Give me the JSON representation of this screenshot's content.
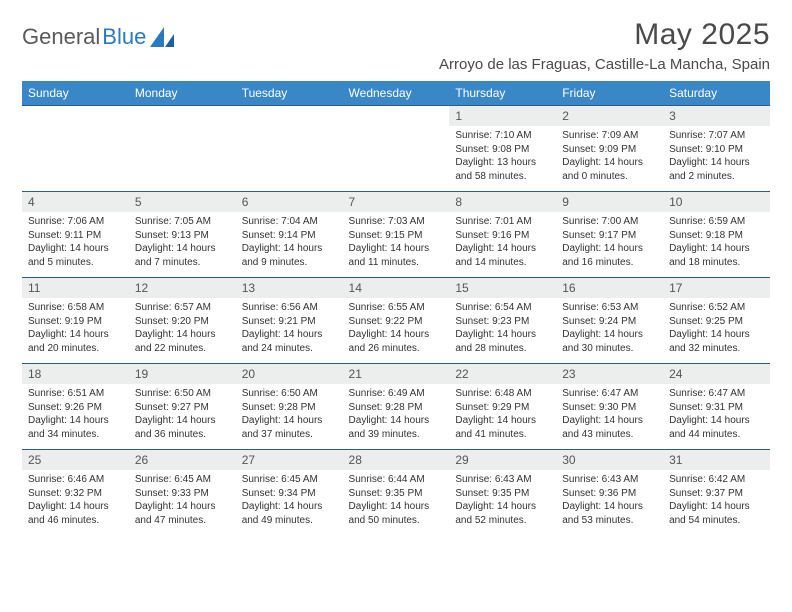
{
  "brand": {
    "text1": "General",
    "text2": "Blue"
  },
  "title": "May 2025",
  "location": "Arroyo de las Fraguas, Castille-La Mancha, Spain",
  "colors": {
    "header_bg": "#3a87c8",
    "header_text": "#ffffff",
    "row_border": "#2f5b84",
    "daynum_bg": "#eceded",
    "text": "#333333",
    "brand_gray": "#5a5a5a",
    "brand_blue": "#2a7ac0"
  },
  "typography": {
    "title_fontsize": 30,
    "location_fontsize": 15,
    "header_fontsize": 12,
    "daynum_fontsize": 12,
    "info_fontsize": 10
  },
  "day_headers": [
    "Sunday",
    "Monday",
    "Tuesday",
    "Wednesday",
    "Thursday",
    "Friday",
    "Saturday"
  ],
  "weeks": [
    [
      {
        "empty": true
      },
      {
        "empty": true
      },
      {
        "empty": true
      },
      {
        "empty": true
      },
      {
        "num": "1",
        "sunrise": "Sunrise: 7:10 AM",
        "sunset": "Sunset: 9:08 PM",
        "daylight1": "Daylight: 13 hours",
        "daylight2": "and 58 minutes."
      },
      {
        "num": "2",
        "sunrise": "Sunrise: 7:09 AM",
        "sunset": "Sunset: 9:09 PM",
        "daylight1": "Daylight: 14 hours",
        "daylight2": "and 0 minutes."
      },
      {
        "num": "3",
        "sunrise": "Sunrise: 7:07 AM",
        "sunset": "Sunset: 9:10 PM",
        "daylight1": "Daylight: 14 hours",
        "daylight2": "and 2 minutes."
      }
    ],
    [
      {
        "num": "4",
        "sunrise": "Sunrise: 7:06 AM",
        "sunset": "Sunset: 9:11 PM",
        "daylight1": "Daylight: 14 hours",
        "daylight2": "and 5 minutes."
      },
      {
        "num": "5",
        "sunrise": "Sunrise: 7:05 AM",
        "sunset": "Sunset: 9:13 PM",
        "daylight1": "Daylight: 14 hours",
        "daylight2": "and 7 minutes."
      },
      {
        "num": "6",
        "sunrise": "Sunrise: 7:04 AM",
        "sunset": "Sunset: 9:14 PM",
        "daylight1": "Daylight: 14 hours",
        "daylight2": "and 9 minutes."
      },
      {
        "num": "7",
        "sunrise": "Sunrise: 7:03 AM",
        "sunset": "Sunset: 9:15 PM",
        "daylight1": "Daylight: 14 hours",
        "daylight2": "and 11 minutes."
      },
      {
        "num": "8",
        "sunrise": "Sunrise: 7:01 AM",
        "sunset": "Sunset: 9:16 PM",
        "daylight1": "Daylight: 14 hours",
        "daylight2": "and 14 minutes."
      },
      {
        "num": "9",
        "sunrise": "Sunrise: 7:00 AM",
        "sunset": "Sunset: 9:17 PM",
        "daylight1": "Daylight: 14 hours",
        "daylight2": "and 16 minutes."
      },
      {
        "num": "10",
        "sunrise": "Sunrise: 6:59 AM",
        "sunset": "Sunset: 9:18 PM",
        "daylight1": "Daylight: 14 hours",
        "daylight2": "and 18 minutes."
      }
    ],
    [
      {
        "num": "11",
        "sunrise": "Sunrise: 6:58 AM",
        "sunset": "Sunset: 9:19 PM",
        "daylight1": "Daylight: 14 hours",
        "daylight2": "and 20 minutes."
      },
      {
        "num": "12",
        "sunrise": "Sunrise: 6:57 AM",
        "sunset": "Sunset: 9:20 PM",
        "daylight1": "Daylight: 14 hours",
        "daylight2": "and 22 minutes."
      },
      {
        "num": "13",
        "sunrise": "Sunrise: 6:56 AM",
        "sunset": "Sunset: 9:21 PM",
        "daylight1": "Daylight: 14 hours",
        "daylight2": "and 24 minutes."
      },
      {
        "num": "14",
        "sunrise": "Sunrise: 6:55 AM",
        "sunset": "Sunset: 9:22 PM",
        "daylight1": "Daylight: 14 hours",
        "daylight2": "and 26 minutes."
      },
      {
        "num": "15",
        "sunrise": "Sunrise: 6:54 AM",
        "sunset": "Sunset: 9:23 PM",
        "daylight1": "Daylight: 14 hours",
        "daylight2": "and 28 minutes."
      },
      {
        "num": "16",
        "sunrise": "Sunrise: 6:53 AM",
        "sunset": "Sunset: 9:24 PM",
        "daylight1": "Daylight: 14 hours",
        "daylight2": "and 30 minutes."
      },
      {
        "num": "17",
        "sunrise": "Sunrise: 6:52 AM",
        "sunset": "Sunset: 9:25 PM",
        "daylight1": "Daylight: 14 hours",
        "daylight2": "and 32 minutes."
      }
    ],
    [
      {
        "num": "18",
        "sunrise": "Sunrise: 6:51 AM",
        "sunset": "Sunset: 9:26 PM",
        "daylight1": "Daylight: 14 hours",
        "daylight2": "and 34 minutes."
      },
      {
        "num": "19",
        "sunrise": "Sunrise: 6:50 AM",
        "sunset": "Sunset: 9:27 PM",
        "daylight1": "Daylight: 14 hours",
        "daylight2": "and 36 minutes."
      },
      {
        "num": "20",
        "sunrise": "Sunrise: 6:50 AM",
        "sunset": "Sunset: 9:28 PM",
        "daylight1": "Daylight: 14 hours",
        "daylight2": "and 37 minutes."
      },
      {
        "num": "21",
        "sunrise": "Sunrise: 6:49 AM",
        "sunset": "Sunset: 9:28 PM",
        "daylight1": "Daylight: 14 hours",
        "daylight2": "and 39 minutes."
      },
      {
        "num": "22",
        "sunrise": "Sunrise: 6:48 AM",
        "sunset": "Sunset: 9:29 PM",
        "daylight1": "Daylight: 14 hours",
        "daylight2": "and 41 minutes."
      },
      {
        "num": "23",
        "sunrise": "Sunrise: 6:47 AM",
        "sunset": "Sunset: 9:30 PM",
        "daylight1": "Daylight: 14 hours",
        "daylight2": "and 43 minutes."
      },
      {
        "num": "24",
        "sunrise": "Sunrise: 6:47 AM",
        "sunset": "Sunset: 9:31 PM",
        "daylight1": "Daylight: 14 hours",
        "daylight2": "and 44 minutes."
      }
    ],
    [
      {
        "num": "25",
        "sunrise": "Sunrise: 6:46 AM",
        "sunset": "Sunset: 9:32 PM",
        "daylight1": "Daylight: 14 hours",
        "daylight2": "and 46 minutes."
      },
      {
        "num": "26",
        "sunrise": "Sunrise: 6:45 AM",
        "sunset": "Sunset: 9:33 PM",
        "daylight1": "Daylight: 14 hours",
        "daylight2": "and 47 minutes."
      },
      {
        "num": "27",
        "sunrise": "Sunrise: 6:45 AM",
        "sunset": "Sunset: 9:34 PM",
        "daylight1": "Daylight: 14 hours",
        "daylight2": "and 49 minutes."
      },
      {
        "num": "28",
        "sunrise": "Sunrise: 6:44 AM",
        "sunset": "Sunset: 9:35 PM",
        "daylight1": "Daylight: 14 hours",
        "daylight2": "and 50 minutes."
      },
      {
        "num": "29",
        "sunrise": "Sunrise: 6:43 AM",
        "sunset": "Sunset: 9:35 PM",
        "daylight1": "Daylight: 14 hours",
        "daylight2": "and 52 minutes."
      },
      {
        "num": "30",
        "sunrise": "Sunrise: 6:43 AM",
        "sunset": "Sunset: 9:36 PM",
        "daylight1": "Daylight: 14 hours",
        "daylight2": "and 53 minutes."
      },
      {
        "num": "31",
        "sunrise": "Sunrise: 6:42 AM",
        "sunset": "Sunset: 9:37 PM",
        "daylight1": "Daylight: 14 hours",
        "daylight2": "and 54 minutes."
      }
    ]
  ]
}
